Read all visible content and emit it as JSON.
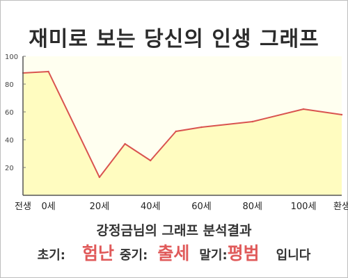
{
  "title": "재미로 보는 당신의 인생 그래프",
  "analysis_title": "강정금님의 그래프 분석결과",
  "result": {
    "early_label": "초기:",
    "early_value": "험난",
    "middle_label": "중기:",
    "middle_value": "출세",
    "late_label": "말기:",
    "late_value": "평범",
    "suffix": "입니다"
  },
  "colors": {
    "line": "#d9534f",
    "fill": "#fffcc0",
    "plot_bg": "#fffff0",
    "accent_text": "#e05a5a"
  },
  "chart_data": {
    "type": "area",
    "title": "재미로 보는 당신의 인생 그래프",
    "xlabel": "",
    "ylabel": "",
    "x_categories": [
      "전생",
      "0세",
      "20세",
      "40세",
      "60세",
      "80세",
      "100세",
      "환생"
    ],
    "y_ticks": [
      20,
      40,
      60,
      80,
      100
    ],
    "ylim": [
      0,
      100
    ],
    "grid": false,
    "legend": "none",
    "series": [
      {
        "x": [
          "전생",
          "0세",
          "20세",
          "30세",
          "40세",
          "50세",
          "60세",
          "80세",
          "100세",
          "환생"
        ],
        "y": [
          88,
          89,
          13,
          37,
          25,
          46,
          49,
          53,
          62,
          58
        ]
      }
    ]
  }
}
